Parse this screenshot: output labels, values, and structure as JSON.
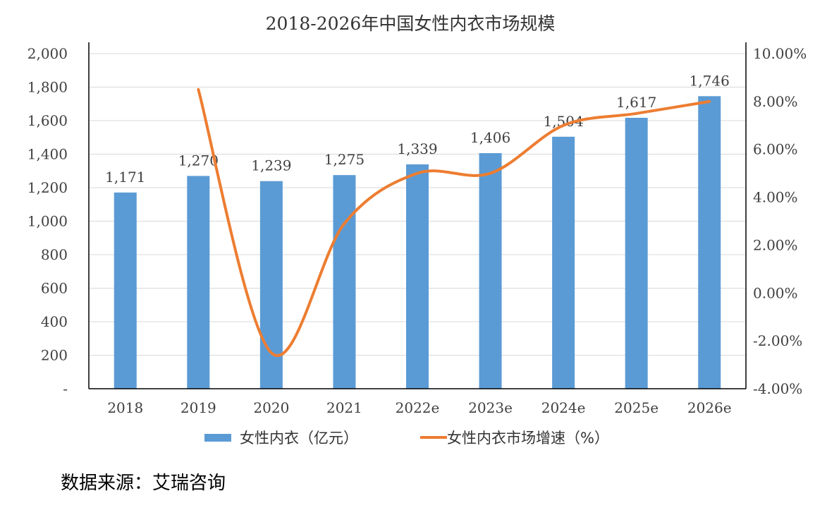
{
  "chart_data": {
    "type": "bar",
    "title": "2018-2026年中国女性内衣市场规模",
    "categories": [
      "2018",
      "2019",
      "2020",
      "2021",
      "2022e",
      "2023e",
      "2024e",
      "2025e",
      "2026e"
    ],
    "series": [
      {
        "name": "女性内衣（亿元）",
        "type": "bar",
        "axis": "left",
        "color": "#5B9BD5",
        "values": [
          1171,
          1270,
          1239,
          1275,
          1339,
          1406,
          1504,
          1617,
          1746
        ],
        "data_labels": [
          "1,171",
          "1,270",
          "1,239",
          "1,275",
          "1,339",
          "1,406",
          "1,504",
          "1,617",
          "1,746"
        ]
      },
      {
        "name": "女性内衣市场增速（%）",
        "type": "line",
        "smooth": true,
        "axis": "right",
        "color": "#ED7D31",
        "values": [
          null,
          8.5,
          -2.5,
          2.9,
          5.0,
          5.0,
          7.0,
          7.5,
          8.0
        ]
      }
    ],
    "y_left": {
      "ylim": [
        0,
        2000
      ],
      "ticks": [
        0,
        200,
        400,
        600,
        800,
        1000,
        1200,
        1400,
        1600,
        1800,
        2000
      ],
      "tick_labels": [
        "-",
        "200",
        "400",
        "600",
        "800",
        "1,000",
        "1,200",
        "1,400",
        "1,600",
        "1,800",
        "2,000"
      ]
    },
    "y_right": {
      "ylim": [
        -4,
        10
      ],
      "ticks": [
        -4,
        -2,
        0,
        2,
        4,
        6,
        8,
        10
      ],
      "tick_labels": [
        "-4.00%",
        "-2.00%",
        "0.00%",
        "2.00%",
        "4.00%",
        "6.00%",
        "8.00%",
        "10.00%"
      ]
    },
    "grid": true,
    "legend_position": "bottom"
  },
  "source_note": "数据来源：艾瑞咨询"
}
